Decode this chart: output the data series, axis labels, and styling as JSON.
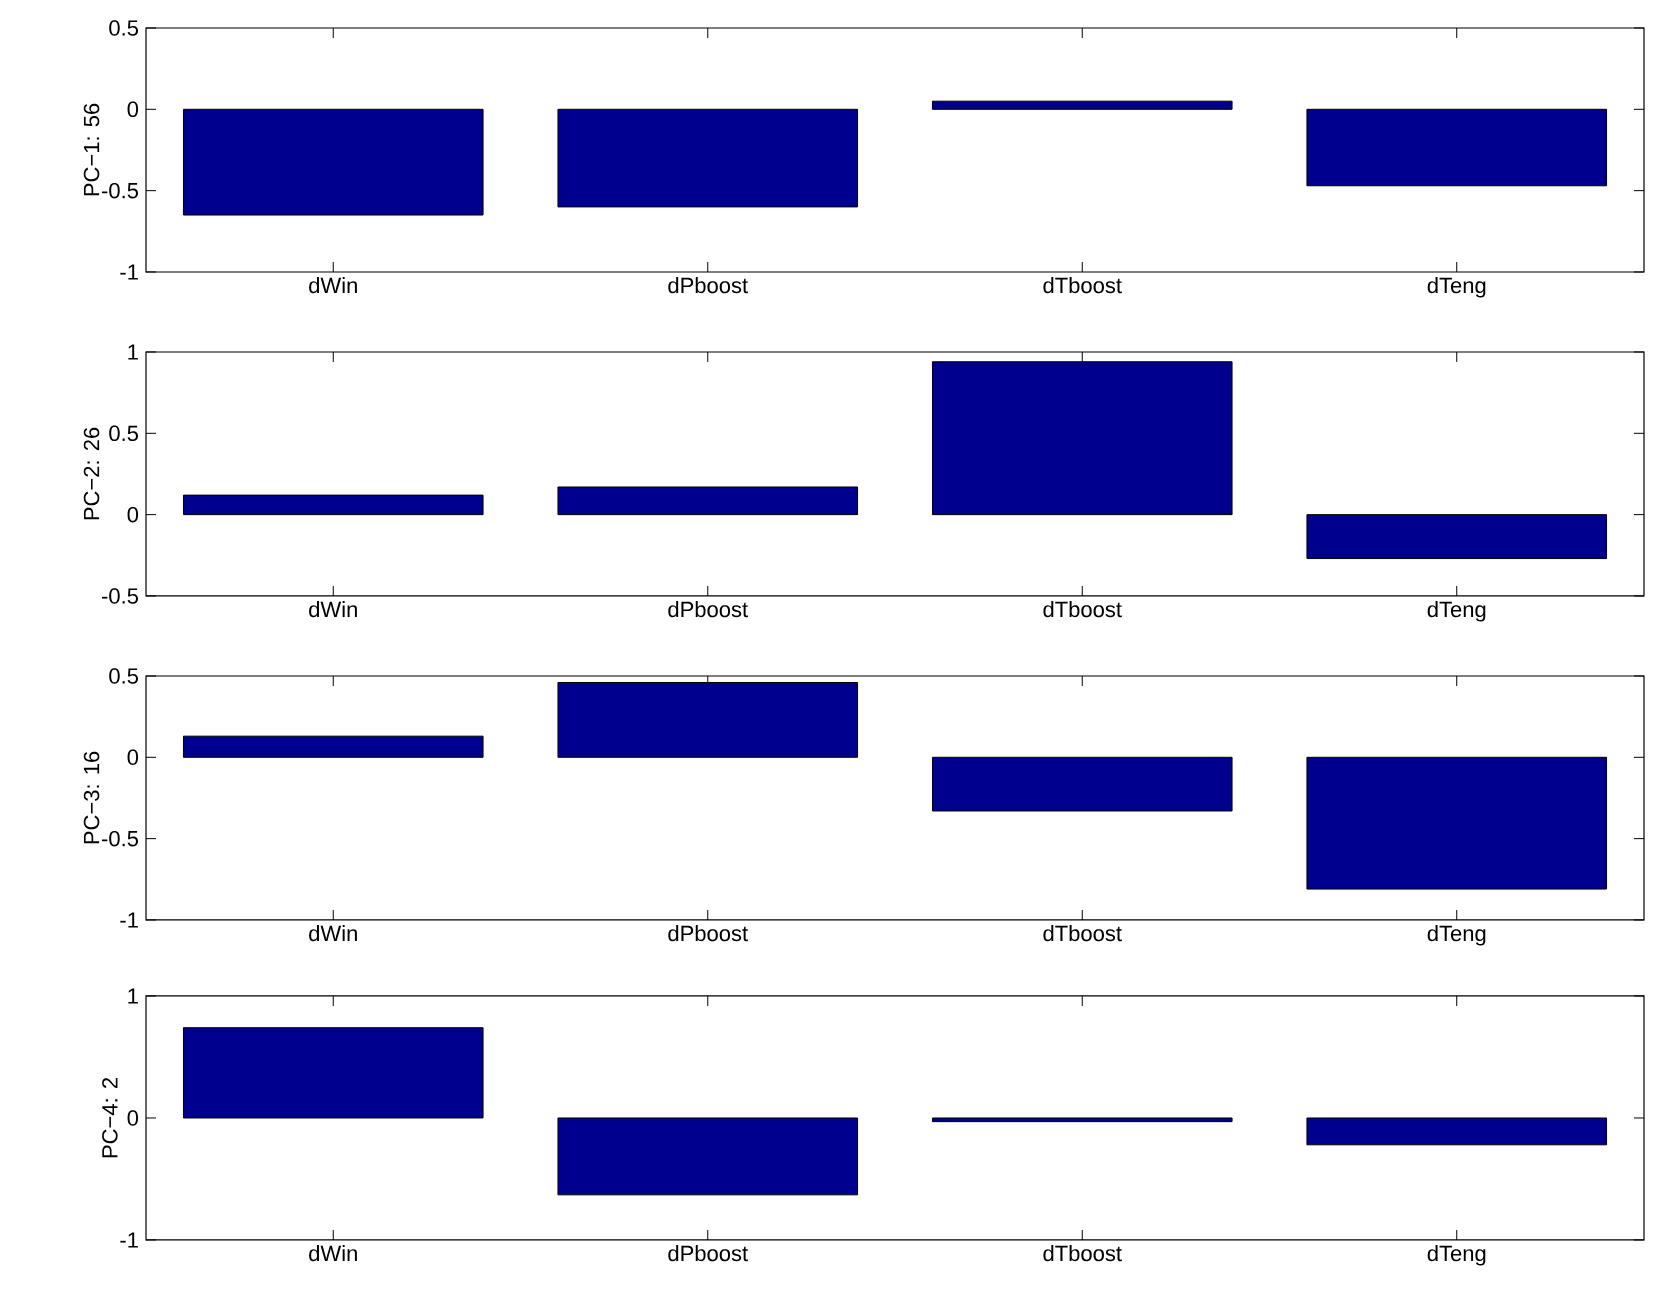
{
  "chart_data": [
    {
      "type": "bar",
      "categories": [
        "dWin",
        "dPboost",
        "dTboost",
        "dTeng"
      ],
      "values": [
        -0.65,
        -0.6,
        0.05,
        -0.47
      ],
      "color": "#00008f",
      "ylabel": "PC−1: 56",
      "ylim": [
        -1,
        0.5
      ],
      "yticks": [
        -1,
        -0.5,
        0,
        0.5
      ]
    },
    {
      "type": "bar",
      "categories": [
        "dWin",
        "dPboost",
        "dTboost",
        "dTeng"
      ],
      "values": [
        0.12,
        0.17,
        0.94,
        -0.27
      ],
      "color": "#00008f",
      "ylabel": "PC−2: 26",
      "ylim": [
        -0.5,
        1
      ],
      "yticks": [
        -0.5,
        0,
        0.5,
        1
      ]
    },
    {
      "type": "bar",
      "categories": [
        "dWin",
        "dPboost",
        "dTboost",
        "dTeng"
      ],
      "values": [
        0.13,
        0.46,
        -0.33,
        -0.81
      ],
      "color": "#00008f",
      "ylabel": "PC−3: 16",
      "ylim": [
        -1,
        0.5
      ],
      "yticks": [
        -1,
        -0.5,
        0,
        0.5
      ]
    },
    {
      "type": "bar",
      "categories": [
        "dWin",
        "dPboost",
        "dTboost",
        "dTeng"
      ],
      "values": [
        0.74,
        -0.63,
        -0.03,
        -0.22
      ],
      "color": "#00008f",
      "ylabel": "PC−4: 2",
      "ylim": [
        -1,
        1
      ],
      "yticks": [
        -1,
        0,
        1
      ]
    }
  ]
}
